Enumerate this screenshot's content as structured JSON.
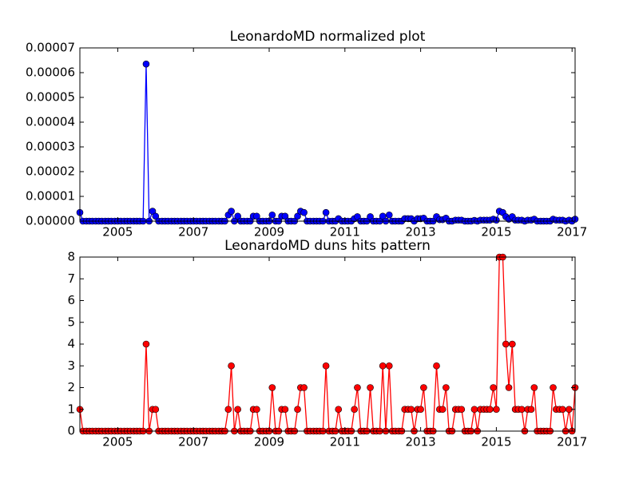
{
  "chart_data": [
    {
      "type": "line",
      "title": "LeonardoMD normalized plot",
      "x": [
        2004,
        2004.08,
        2004.17,
        2004.25,
        2004.33,
        2004.42,
        2004.5,
        2004.58,
        2004.67,
        2004.75,
        2004.83,
        2004.92,
        2005,
        2005.08,
        2005.17,
        2005.25,
        2005.33,
        2005.42,
        2005.5,
        2005.58,
        2005.67,
        2005.75,
        2005.83,
        2005.92,
        2006,
        2006.08,
        2006.17,
        2006.25,
        2006.33,
        2006.42,
        2006.5,
        2006.58,
        2006.67,
        2006.75,
        2006.83,
        2006.92,
        2007,
        2007.08,
        2007.17,
        2007.25,
        2007.33,
        2007.42,
        2007.5,
        2007.58,
        2007.67,
        2007.75,
        2007.83,
        2007.92,
        2008,
        2008.08,
        2008.17,
        2008.25,
        2008.33,
        2008.42,
        2008.5,
        2008.58,
        2008.67,
        2008.75,
        2008.83,
        2008.92,
        2009,
        2009.08,
        2009.17,
        2009.25,
        2009.33,
        2009.42,
        2009.5,
        2009.58,
        2009.67,
        2009.75,
        2009.83,
        2009.92,
        2010,
        2010.08,
        2010.17,
        2010.25,
        2010.33,
        2010.42,
        2010.5,
        2010.58,
        2010.67,
        2010.75,
        2010.83,
        2010.92,
        2011,
        2011.08,
        2011.17,
        2011.25,
        2011.33,
        2011.42,
        2011.5,
        2011.58,
        2011.67,
        2011.75,
        2011.83,
        2011.92,
        2012,
        2012.08,
        2012.17,
        2012.25,
        2012.33,
        2012.42,
        2012.5,
        2012.58,
        2012.67,
        2012.75,
        2012.83,
        2012.92,
        2013,
        2013.08,
        2013.17,
        2013.25,
        2013.33,
        2013.42,
        2013.5,
        2013.58,
        2013.67,
        2013.75,
        2013.83,
        2013.92,
        2014,
        2014.08,
        2014.17,
        2014.25,
        2014.33,
        2014.42,
        2014.5,
        2014.58,
        2014.67,
        2014.75,
        2014.83,
        2014.92,
        2015,
        2015.08,
        2015.17,
        2015.25,
        2015.33,
        2015.42,
        2015.5,
        2015.58,
        2015.67,
        2015.75,
        2015.83,
        2015.92,
        2016,
        2016.08,
        2016.17,
        2016.25,
        2016.33,
        2016.42,
        2016.5,
        2016.58,
        2016.67,
        2016.75,
        2016.83,
        2016.92,
        2017,
        2017.08
      ],
      "series": [
        {
          "color": "#0000ff",
          "values": [
            3.5e-06,
            0,
            0,
            0,
            0,
            0,
            0,
            0,
            0,
            0,
            0,
            0,
            0,
            0,
            0,
            0,
            0,
            0,
            0,
            0,
            0,
            6.35e-05,
            0,
            4e-06,
            2e-06,
            0,
            0,
            0,
            0,
            0,
            0,
            0,
            0,
            0,
            0,
            0,
            0,
            0,
            0,
            0,
            0,
            0,
            0,
            0,
            0,
            0,
            0,
            2.5e-06,
            4e-06,
            0,
            2e-06,
            0,
            0,
            0,
            0,
            2e-06,
            2e-06,
            0,
            0,
            0,
            0,
            2.5e-06,
            0,
            0,
            2e-06,
            2e-06,
            0,
            0,
            0,
            2e-06,
            4e-06,
            3.5e-06,
            0,
            0,
            0,
            0,
            0,
            0,
            3.5e-06,
            0,
            0,
            0,
            1e-06,
            0,
            0,
            0,
            0,
            1e-06,
            1.8e-06,
            0,
            0,
            0,
            1.8e-06,
            0,
            0,
            0,
            2e-06,
            0,
            2.5e-06,
            0,
            0,
            0,
            0,
            1e-06,
            1e-06,
            1e-06,
            0,
            1e-06,
            1e-06,
            1.2e-06,
            0,
            0,
            0,
            1.8e-06,
            6e-07,
            6e-07,
            1.2e-06,
            0,
            0,
            4e-07,
            4e-07,
            4e-07,
            0,
            0,
            0,
            3e-07,
            0,
            4e-07,
            4e-07,
            4e-07,
            4e-07,
            8e-07,
            4e-07,
            4e-06,
            3.5e-06,
            1.8e-06,
            8e-07,
            1.8e-06,
            4e-07,
            4e-07,
            4e-07,
            0,
            4e-07,
            4e-07,
            8e-07,
            0,
            0,
            0,
            0,
            0,
            8e-07,
            4e-07,
            4e-07,
            4e-07,
            0,
            4e-07,
            0,
            8e-07
          ]
        }
      ],
      "xlim": [
        2004,
        2017.08
      ],
      "xticks": [
        2005,
        2007,
        2009,
        2011,
        2013,
        2015,
        2017
      ],
      "ylim": [
        0,
        7e-05
      ],
      "yticks": [
        {
          "value": 0,
          "label": "0.00000"
        },
        {
          "value": 1e-05,
          "label": "0.00001"
        },
        {
          "value": 2e-05,
          "label": "0.00002"
        },
        {
          "value": 3e-05,
          "label": "0.00003"
        },
        {
          "value": 4e-05,
          "label": "0.00004"
        },
        {
          "value": 5e-05,
          "label": "0.00005"
        },
        {
          "value": 6e-05,
          "label": "0.00006"
        },
        {
          "value": 7e-05,
          "label": "0.00007"
        }
      ]
    },
    {
      "type": "line",
      "title": "LeonardoMD duns hits pattern",
      "x": [
        2004,
        2004.08,
        2004.17,
        2004.25,
        2004.33,
        2004.42,
        2004.5,
        2004.58,
        2004.67,
        2004.75,
        2004.83,
        2004.92,
        2005,
        2005.08,
        2005.17,
        2005.25,
        2005.33,
        2005.42,
        2005.5,
        2005.58,
        2005.67,
        2005.75,
        2005.83,
        2005.92,
        2006,
        2006.08,
        2006.17,
        2006.25,
        2006.33,
        2006.42,
        2006.5,
        2006.58,
        2006.67,
        2006.75,
        2006.83,
        2006.92,
        2007,
        2007.08,
        2007.17,
        2007.25,
        2007.33,
        2007.42,
        2007.5,
        2007.58,
        2007.67,
        2007.75,
        2007.83,
        2007.92,
        2008,
        2008.08,
        2008.17,
        2008.25,
        2008.33,
        2008.42,
        2008.5,
        2008.58,
        2008.67,
        2008.75,
        2008.83,
        2008.92,
        2009,
        2009.08,
        2009.17,
        2009.25,
        2009.33,
        2009.42,
        2009.5,
        2009.58,
        2009.67,
        2009.75,
        2009.83,
        2009.92,
        2010,
        2010.08,
        2010.17,
        2010.25,
        2010.33,
        2010.42,
        2010.5,
        2010.58,
        2010.67,
        2010.75,
        2010.83,
        2010.92,
        2011,
        2011.08,
        2011.17,
        2011.25,
        2011.33,
        2011.42,
        2011.5,
        2011.58,
        2011.67,
        2011.75,
        2011.83,
        2011.92,
        2012,
        2012.08,
        2012.17,
        2012.25,
        2012.33,
        2012.42,
        2012.5,
        2012.58,
        2012.67,
        2012.75,
        2012.83,
        2012.92,
        2013,
        2013.08,
        2013.17,
        2013.25,
        2013.33,
        2013.42,
        2013.5,
        2013.58,
        2013.67,
        2013.75,
        2013.83,
        2013.92,
        2014,
        2014.08,
        2014.17,
        2014.25,
        2014.33,
        2014.42,
        2014.5,
        2014.58,
        2014.67,
        2014.75,
        2014.83,
        2014.92,
        2015,
        2015.08,
        2015.17,
        2015.25,
        2015.33,
        2015.42,
        2015.5,
        2015.58,
        2015.67,
        2015.75,
        2015.83,
        2015.92,
        2016,
        2016.08,
        2016.17,
        2016.25,
        2016.33,
        2016.42,
        2016.5,
        2016.58,
        2016.67,
        2016.75,
        2016.83,
        2016.92,
        2017,
        2017.08
      ],
      "series": [
        {
          "color": "#ff0000",
          "values": [
            1,
            0,
            0,
            0,
            0,
            0,
            0,
            0,
            0,
            0,
            0,
            0,
            0,
            0,
            0,
            0,
            0,
            0,
            0,
            0,
            0,
            4,
            0,
            1,
            1,
            0,
            0,
            0,
            0,
            0,
            0,
            0,
            0,
            0,
            0,
            0,
            0,
            0,
            0,
            0,
            0,
            0,
            0,
            0,
            0,
            0,
            0,
            1,
            3,
            0,
            1,
            0,
            0,
            0,
            0,
            1,
            1,
            0,
            0,
            0,
            0,
            2,
            0,
            0,
            1,
            1,
            0,
            0,
            0,
            1,
            2,
            2,
            0,
            0,
            0,
            0,
            0,
            0,
            3,
            0,
            0,
            0,
            1,
            0,
            0,
            0,
            0,
            1,
            2,
            0,
            0,
            0,
            2,
            0,
            0,
            0,
            3,
            0,
            3,
            0,
            0,
            0,
            0,
            1,
            1,
            1,
            0,
            1,
            1,
            2,
            0,
            0,
            0,
            3,
            1,
            1,
            2,
            0,
            0,
            1,
            1,
            1,
            0,
            0,
            0,
            1,
            0,
            1,
            1,
            1,
            1,
            2,
            1,
            8,
            8,
            4,
            2,
            4,
            1,
            1,
            1,
            0,
            1,
            1,
            2,
            0,
            0,
            0,
            0,
            0,
            2,
            1,
            1,
            1,
            0,
            1,
            0,
            2
          ]
        }
      ],
      "xlim": [
        2004,
        2017.08
      ],
      "xticks": [
        2005,
        2007,
        2009,
        2011,
        2013,
        2015,
        2017
      ],
      "ylim": [
        0,
        8
      ],
      "yticks": [
        0,
        1,
        2,
        3,
        4,
        5,
        6,
        7,
        8
      ]
    }
  ]
}
